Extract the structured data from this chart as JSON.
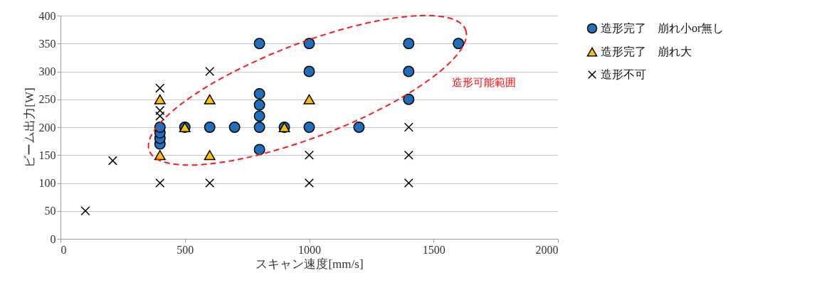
{
  "chart_data": {
    "type": "scatter",
    "xlabel": "スキャン速度[mm/s]",
    "ylabel": "ビーム出力[W]",
    "xlim": [
      0,
      2000
    ],
    "xticks": [
      0,
      500,
      1000,
      1500,
      2000
    ],
    "ylim": [
      0,
      400
    ],
    "yticks": [
      0,
      50,
      100,
      150,
      200,
      250,
      300,
      350,
      400
    ],
    "grid": "y",
    "legend": "right",
    "annotations": [
      "造形可能範囲"
    ],
    "series": [
      {
        "name": "造形完了　崩れ小or無し",
        "color": "#1f6fbf",
        "marker": "circle",
        "x": [
          400,
          400,
          400,
          400,
          500,
          600,
          700,
          800,
          800,
          800,
          800,
          800,
          800,
          900,
          1000,
          1000,
          1000,
          1200,
          1400,
          1400,
          1400,
          1600
        ],
        "values": [
          170,
          180,
          190,
          200,
          200,
          200,
          200,
          160,
          200,
          220,
          240,
          260,
          350,
          200,
          200,
          300,
          350,
          200,
          250,
          300,
          350,
          350
        ]
      },
      {
        "name": "造形完了　崩れ大",
        "color": "#ffc000",
        "marker": "triangle",
        "x": [
          400,
          400,
          500,
          600,
          600,
          900,
          1000
        ],
        "values": [
          150,
          250,
          200,
          150,
          250,
          200,
          250
        ]
      },
      {
        "name": "造形不可",
        "color": "#000000",
        "marker": "cross",
        "x": [
          100,
          210,
          400,
          400,
          400,
          400,
          600,
          600,
          1000,
          1000,
          1400,
          1400,
          1400
        ],
        "values": [
          50,
          140,
          100,
          220,
          230,
          270,
          100,
          300,
          100,
          150,
          100,
          150,
          200
        ]
      }
    ]
  }
}
